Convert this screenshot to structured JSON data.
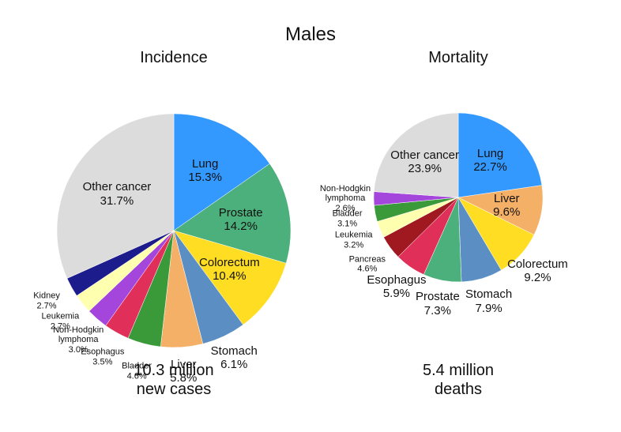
{
  "title": "Males",
  "chart_data": [
    {
      "type": "pie",
      "title": "Incidence",
      "categories": [
        "Lung",
        "Prostate",
        "Colorectum",
        "Stomach",
        "Liver",
        "Bladder",
        "Esophagus",
        "Non-Hodgkin lymphoma",
        "Leukemia",
        "Kidney",
        "Other cancer"
      ],
      "values": [
        15.3,
        14.2,
        10.4,
        6.1,
        5.8,
        4.6,
        3.5,
        3.0,
        2.7,
        2.7,
        31.7
      ],
      "value_labels": [
        "15.3%",
        "14.2%",
        "10.4%",
        "6.1%",
        "5.8%",
        "4.6%",
        "3.5%",
        "3.0%",
        "2.7%",
        "2.7%",
        "31.7%"
      ],
      "colors": [
        "#3399ff",
        "#4cb07c",
        "#ffdd22",
        "#5b8fc4",
        "#f5b068",
        "#3a9a3a",
        "#e0305a",
        "#a445dc",
        "#ffffb0",
        "#1c1c8c",
        "#dcdcdc"
      ],
      "note": [
        "10.3 million",
        "new cases"
      ]
    },
    {
      "type": "pie",
      "title": "Mortality",
      "categories": [
        "Lung",
        "Liver",
        "Colorectum",
        "Stomach",
        "Prostate",
        "Esophagus",
        "Pancreas",
        "Leukemia",
        "Bladder",
        "Non-Hodgkin lymphoma",
        "Other cancer"
      ],
      "values": [
        22.7,
        9.6,
        9.2,
        7.9,
        7.3,
        5.9,
        4.6,
        3.2,
        3.1,
        2.6,
        23.9
      ],
      "value_labels": [
        "22.7%",
        "9.6%",
        "9.2%",
        "7.9%",
        "7.3%",
        "5.9%",
        "4.6%",
        "3.2%",
        "3.1%",
        "2.6%",
        "23.9%"
      ],
      "colors": [
        "#3399ff",
        "#f5b068",
        "#ffdd22",
        "#5b8fc4",
        "#4cb07c",
        "#e0305a",
        "#a01820",
        "#ffffb0",
        "#3a9a3a",
        "#a445dc",
        "#dcdcdc"
      ],
      "note": [
        "5.4 million",
        "deaths"
      ]
    }
  ]
}
